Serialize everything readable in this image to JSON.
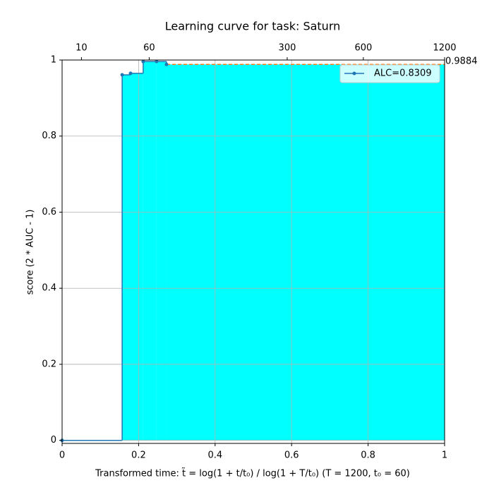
{
  "chart_data": {
    "type": "step",
    "title": "Learning curve for task: Saturn",
    "xlabel": "Transformed time: t̃ = log(1 + t/t₀) / log(1 + T/t₀)   (T = 1200,  t₀ = 60)",
    "ylabel": "score (2 * AUC - 1)",
    "x": [
      0,
      0.157,
      0.179,
      0.212,
      0.247,
      0.273
    ],
    "series": [
      {
        "name": "ALC=0.8309",
        "color": "#1f77b4",
        "fill": "#00ffff",
        "values": [
          0,
          0.961,
          0.965,
          0.996,
          0.996,
          0.9884
        ]
      }
    ],
    "final_value": 0.9884,
    "final_color": "#ff7f0e",
    "xlim": [
      0,
      1
    ],
    "ylim": [
      -0.008,
      1.0
    ],
    "xticks": [
      0.0,
      0.2,
      0.4,
      0.6,
      0.8,
      1.0
    ],
    "yticks": [
      0.0,
      0.2,
      0.4,
      0.6,
      0.8,
      1.0
    ],
    "x2ticks": [
      {
        "value": 0.0506,
        "label": "10"
      },
      {
        "value": 0.2277,
        "label": "60"
      },
      {
        "value": 0.5885,
        "label": "300"
      },
      {
        "value": 0.7876,
        "label": "600"
      },
      {
        "value": 1.0,
        "label": "1200"
      }
    ],
    "grid": true,
    "legend": "upper right"
  }
}
